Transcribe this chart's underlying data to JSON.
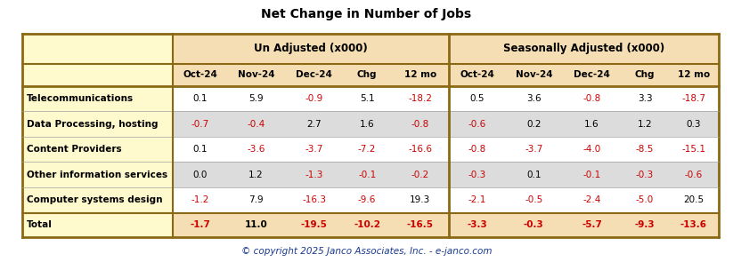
{
  "title": "Net Change in Number of Jobs",
  "copyright": "© copyright 2025 Janco Associates, Inc. - e-janco.com",
  "col_headers_row2": [
    "",
    "Oct-24",
    "Nov-24",
    "Dec-24",
    "Chg",
    "12 mo",
    "Oct-24",
    "Nov-24",
    "Dec-24",
    "Chg",
    "12 mo"
  ],
  "rows": [
    [
      "Telecommunications",
      "0.1",
      "5.9",
      "-0.9",
      "5.1",
      "-18.2",
      "0.5",
      "3.6",
      "-0.8",
      "3.3",
      "-18.7"
    ],
    [
      "Data Processing, hosting",
      "-0.7",
      "-0.4",
      "2.7",
      "1.6",
      "-0.8",
      "-0.6",
      "0.2",
      "1.6",
      "1.2",
      "0.3"
    ],
    [
      "Content Providers",
      "0.1",
      "-3.6",
      "-3.7",
      "-7.2",
      "-16.6",
      "-0.8",
      "-3.7",
      "-4.0",
      "-8.5",
      "-15.1"
    ],
    [
      "Other information services",
      "0.0",
      "1.2",
      "-1.3",
      "-0.1",
      "-0.2",
      "-0.3",
      "0.1",
      "-0.1",
      "-0.3",
      "-0.6"
    ],
    [
      "Computer systems design",
      "-1.2",
      "7.9",
      "-16.3",
      "-9.6",
      "19.3",
      "-2.1",
      "-0.5",
      "-2.4",
      "-5.0",
      "20.5"
    ],
    [
      "Total",
      "-1.7",
      "11.0",
      "-19.5",
      "-10.2",
      "-16.5",
      "-3.3",
      "-0.3",
      "-5.7",
      "-9.3",
      "-13.6"
    ]
  ],
  "unadj_header": "Un Adjusted (x000)",
  "seadj_header": "Seasonally Adjusted (x000)",
  "color_negative": "#CC0000",
  "color_positive": "#000000",
  "header_bg": "#F5DEB3",
  "row_bg_odd": "#FFFFFF",
  "row_bg_even": "#DCDCDC",
  "total_row_bg": "#F5DEB3",
  "label_col_bg": "#FFFACD",
  "border_dark": "#8B6914",
  "border_mid": "#A0A0A0",
  "title_color": "#000000",
  "copyright_color": "#1a3a8f"
}
